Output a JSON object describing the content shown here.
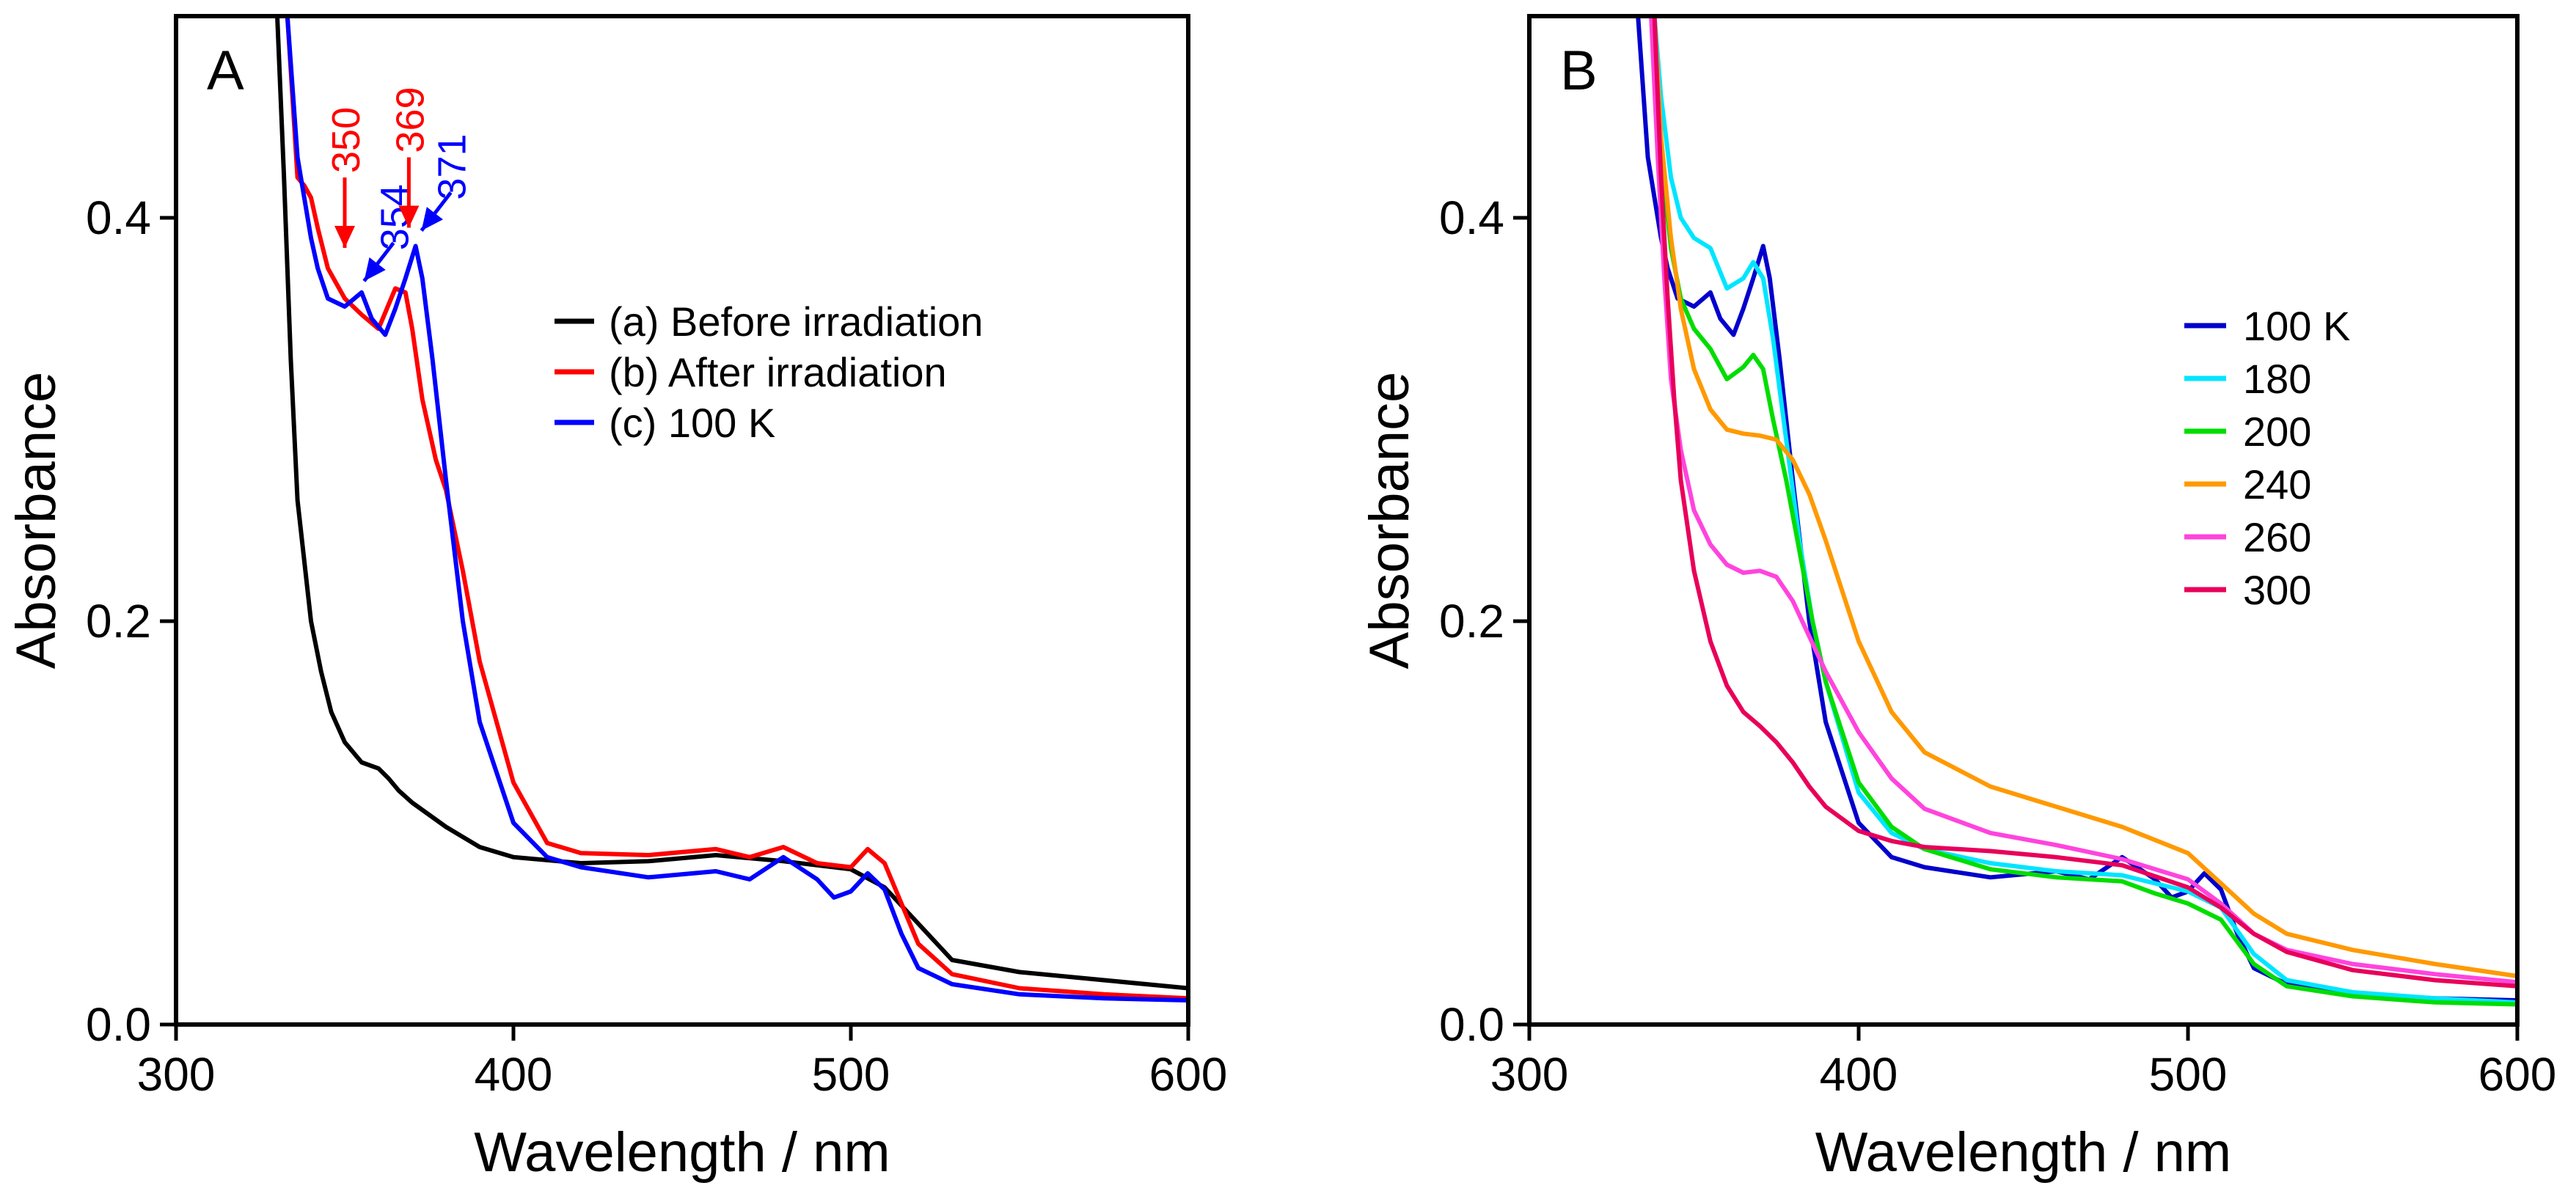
{
  "chart_data": [
    {
      "type": "line",
      "panel_label": "A",
      "xlabel": "Wavelength / nm",
      "ylabel": "Absorbance",
      "xlim": [
        300,
        600
      ],
      "ylim": [
        0,
        0.5
      ],
      "xticks": [
        300,
        400,
        500,
        600
      ],
      "xtick_labels": [
        "300",
        "400",
        "500",
        "600"
      ],
      "yticks": [
        0.0,
        0.2,
        0.4
      ],
      "ytick_labels": [
        "0.0",
        "0.2",
        "0.4"
      ],
      "legend_position": "center-right",
      "series": [
        {
          "name": "(a) Before irradiation",
          "color": "#000000",
          "x": [
            330,
            332,
            334,
            336,
            338,
            340,
            343,
            346,
            350,
            355,
            360,
            363,
            366,
            370,
            375,
            380,
            390,
            400,
            420,
            440,
            460,
            480,
            500,
            510,
            520,
            530,
            550,
            575,
            600
          ],
          "y": [
            0.5,
            0.42,
            0.33,
            0.26,
            0.23,
            0.2,
            0.175,
            0.155,
            0.14,
            0.13,
            0.127,
            0.122,
            0.116,
            0.11,
            0.104,
            0.098,
            0.088,
            0.083,
            0.08,
            0.081,
            0.084,
            0.081,
            0.077,
            0.068,
            0.05,
            0.032,
            0.026,
            0.022,
            0.018
          ]
        },
        {
          "name": "(b) After irradiation",
          "color": "#ff0000",
          "x": [
            333,
            336,
            338,
            340,
            342,
            345,
            350,
            355,
            360,
            365,
            368,
            370,
            373,
            377,
            380,
            385,
            390,
            400,
            410,
            420,
            440,
            460,
            470,
            480,
            490,
            500,
            505,
            510,
            515,
            520,
            530,
            550,
            575,
            600
          ],
          "y": [
            0.5,
            0.42,
            0.416,
            0.41,
            0.395,
            0.375,
            0.36,
            0.352,
            0.345,
            0.365,
            0.363,
            0.345,
            0.31,
            0.28,
            0.265,
            0.225,
            0.18,
            0.12,
            0.09,
            0.085,
            0.084,
            0.087,
            0.083,
            0.088,
            0.08,
            0.078,
            0.087,
            0.08,
            0.06,
            0.04,
            0.025,
            0.018,
            0.015,
            0.013
          ]
        },
        {
          "name": "(c) 100 K",
          "color": "#0000ff",
          "x": [
            333,
            336,
            338,
            340,
            342,
            345,
            350,
            355,
            358,
            362,
            365,
            368,
            371,
            373,
            376,
            380,
            385,
            390,
            400,
            410,
            420,
            440,
            460,
            470,
            480,
            490,
            495,
            500,
            505,
            510,
            515,
            520,
            530,
            550,
            575,
            600
          ],
          "y": [
            0.5,
            0.43,
            0.41,
            0.39,
            0.375,
            0.36,
            0.356,
            0.363,
            0.35,
            0.342,
            0.355,
            0.37,
            0.386,
            0.37,
            0.33,
            0.27,
            0.2,
            0.15,
            0.1,
            0.083,
            0.078,
            0.073,
            0.076,
            0.072,
            0.083,
            0.072,
            0.063,
            0.066,
            0.075,
            0.067,
            0.045,
            0.028,
            0.02,
            0.015,
            0.013,
            0.012
          ]
        }
      ],
      "annotations": [
        {
          "text": "350",
          "color": "#ff0000",
          "x": 350,
          "y": 0.38
        },
        {
          "text": "354",
          "color": "#0000ff",
          "x": 354,
          "y": 0.365
        },
        {
          "text": "369",
          "color": "#ff0000",
          "x": 369,
          "y": 0.39
        },
        {
          "text": "371",
          "color": "#0000ff",
          "x": 371,
          "y": 0.39
        }
      ]
    },
    {
      "type": "line",
      "panel_label": "B",
      "xlabel": "Wavelength / nm",
      "ylabel": "Absorbance",
      "xlim": [
        300,
        600
      ],
      "ylim": [
        0,
        0.5
      ],
      "xticks": [
        300,
        400,
        500,
        600
      ],
      "xtick_labels": [
        "300",
        "400",
        "500",
        "600"
      ],
      "yticks": [
        0.0,
        0.2,
        0.4
      ],
      "ytick_labels": [
        "0.0",
        "0.2",
        "0.4"
      ],
      "legend_position": "center-right",
      "series": [
        {
          "name": "100 K",
          "color": "#0000cc",
          "x": [
            333,
            336,
            338,
            340,
            342,
            345,
            350,
            355,
            358,
            362,
            365,
            368,
            371,
            373,
            376,
            380,
            385,
            390,
            400,
            410,
            420,
            440,
            460,
            470,
            480,
            490,
            495,
            500,
            505,
            510,
            515,
            520,
            530,
            550,
            575,
            600
          ],
          "y": [
            0.5,
            0.43,
            0.41,
            0.39,
            0.375,
            0.36,
            0.356,
            0.363,
            0.35,
            0.342,
            0.355,
            0.37,
            0.386,
            0.37,
            0.33,
            0.27,
            0.2,
            0.15,
            0.1,
            0.083,
            0.078,
            0.073,
            0.076,
            0.072,
            0.083,
            0.072,
            0.063,
            0.066,
            0.075,
            0.067,
            0.045,
            0.028,
            0.02,
            0.015,
            0.013,
            0.012
          ]
        },
        {
          "name": "180",
          "color": "#00e5ff",
          "x": [
            338,
            340,
            343,
            346,
            350,
            355,
            360,
            365,
            368,
            371,
            374,
            378,
            382,
            386,
            390,
            400,
            410,
            420,
            440,
            460,
            480,
            500,
            510,
            520,
            530,
            550,
            575,
            600
          ],
          "y": [
            0.5,
            0.46,
            0.42,
            0.4,
            0.39,
            0.385,
            0.365,
            0.37,
            0.378,
            0.37,
            0.34,
            0.29,
            0.24,
            0.2,
            0.17,
            0.115,
            0.095,
            0.087,
            0.08,
            0.076,
            0.074,
            0.066,
            0.058,
            0.035,
            0.022,
            0.016,
            0.013,
            0.011
          ]
        },
        {
          "name": "200",
          "color": "#00dd00",
          "x": [
            337,
            340,
            343,
            346,
            350,
            355,
            360,
            365,
            368,
            371,
            374,
            378,
            382,
            386,
            390,
            400,
            410,
            420,
            440,
            460,
            480,
            490,
            500,
            510,
            520,
            530,
            550,
            575,
            600
          ],
          "y": [
            0.5,
            0.43,
            0.385,
            0.36,
            0.345,
            0.335,
            0.32,
            0.326,
            0.332,
            0.325,
            0.3,
            0.27,
            0.235,
            0.2,
            0.17,
            0.12,
            0.098,
            0.087,
            0.077,
            0.073,
            0.071,
            0.065,
            0.06,
            0.052,
            0.03,
            0.019,
            0.014,
            0.011,
            0.01
          ]
        },
        {
          "name": "240",
          "color": "#ff9900",
          "x": [
            338,
            340,
            343,
            346,
            350,
            355,
            360,
            365,
            370,
            375,
            380,
            385,
            390,
            400,
            410,
            420,
            440,
            460,
            480,
            500,
            510,
            520,
            530,
            550,
            575,
            600
          ],
          "y": [
            0.5,
            0.44,
            0.39,
            0.355,
            0.325,
            0.305,
            0.295,
            0.293,
            0.292,
            0.29,
            0.28,
            0.263,
            0.24,
            0.19,
            0.155,
            0.135,
            0.118,
            0.108,
            0.098,
            0.085,
            0.07,
            0.055,
            0.045,
            0.037,
            0.03,
            0.024
          ]
        },
        {
          "name": "260",
          "color": "#ff44dd",
          "x": [
            337,
            339,
            341,
            343,
            346,
            350,
            355,
            360,
            365,
            370,
            375,
            380,
            390,
            400,
            410,
            420,
            440,
            460,
            480,
            500,
            510,
            520,
            530,
            550,
            575,
            600
          ],
          "y": [
            0.5,
            0.43,
            0.37,
            0.32,
            0.285,
            0.255,
            0.238,
            0.228,
            0.224,
            0.225,
            0.222,
            0.21,
            0.175,
            0.145,
            0.122,
            0.107,
            0.095,
            0.089,
            0.082,
            0.072,
            0.06,
            0.045,
            0.037,
            0.03,
            0.025,
            0.021
          ]
        },
        {
          "name": "300",
          "color": "#e8005a",
          "x": [
            338,
            340,
            342,
            344,
            346,
            350,
            355,
            360,
            365,
            370,
            375,
            380,
            385,
            390,
            400,
            410,
            420,
            440,
            460,
            480,
            500,
            510,
            520,
            530,
            550,
            575,
            600
          ],
          "y": [
            0.5,
            0.42,
            0.36,
            0.31,
            0.27,
            0.225,
            0.19,
            0.168,
            0.155,
            0.148,
            0.14,
            0.13,
            0.118,
            0.108,
            0.096,
            0.091,
            0.088,
            0.086,
            0.083,
            0.079,
            0.068,
            0.058,
            0.045,
            0.036,
            0.027,
            0.022,
            0.019
          ]
        }
      ],
      "annotations": []
    }
  ]
}
